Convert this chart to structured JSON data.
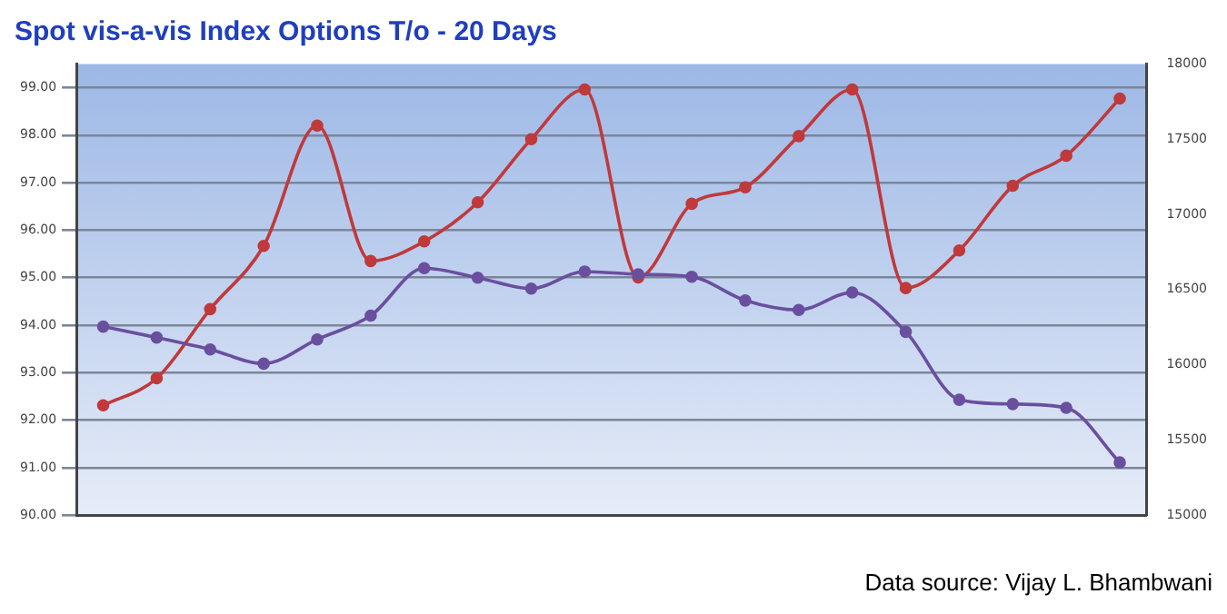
{
  "chart_data": {
    "type": "line",
    "title": "Spot vis-a-vis Index Options T/o - 20 Days",
    "annotations": [
      "Data source: Vijay L. Bhambwani"
    ],
    "categories": [
      null,
      null,
      null,
      null,
      null,
      null,
      null,
      null,
      null,
      null,
      null,
      null,
      null,
      null,
      null,
      null,
      null,
      null,
      null,
      null
    ],
    "series": [
      {
        "color": "#c0393b",
        "axis": "y2",
        "values": [
          15730,
          15910,
          16370,
          16790,
          17590,
          16690,
          16820,
          17080,
          17500,
          17830,
          16580,
          17070,
          17180,
          17520,
          17830,
          16510,
          16760,
          17190,
          17390,
          17770
        ]
      },
      {
        "color": "#6a4f9e",
        "values": [
          93.97,
          93.74,
          93.49,
          93.19,
          93.7,
          94.2,
          95.2,
          95.0,
          94.77,
          95.13,
          95.07,
          95.02,
          94.52,
          94.32,
          94.69,
          93.86,
          92.43,
          92.34,
          92.26,
          91.11
        ]
      }
    ],
    "ylim": [
      90,
      99.5
    ],
    "yticks": [
      {
        "value": 90,
        "label": "90.00"
      },
      {
        "value": 91,
        "label": "91.00"
      },
      {
        "value": 92,
        "label": "92.00"
      },
      {
        "value": 93,
        "label": "93.00"
      },
      {
        "value": 94,
        "label": "94.00"
      },
      {
        "value": 95,
        "label": "95.00"
      },
      {
        "value": 96,
        "label": "96.00"
      },
      {
        "value": 97,
        "label": "97.00"
      },
      {
        "value": 98,
        "label": "98.00"
      },
      {
        "value": 99,
        "label": "99.00"
      }
    ],
    "y2lim": [
      15000,
      18000
    ],
    "y2ticks": [
      15000,
      15500,
      16000,
      16500,
      17000,
      17500,
      18000
    ],
    "grid": "y",
    "marker": "circle",
    "line_style": "solid",
    "legend": false
  }
}
